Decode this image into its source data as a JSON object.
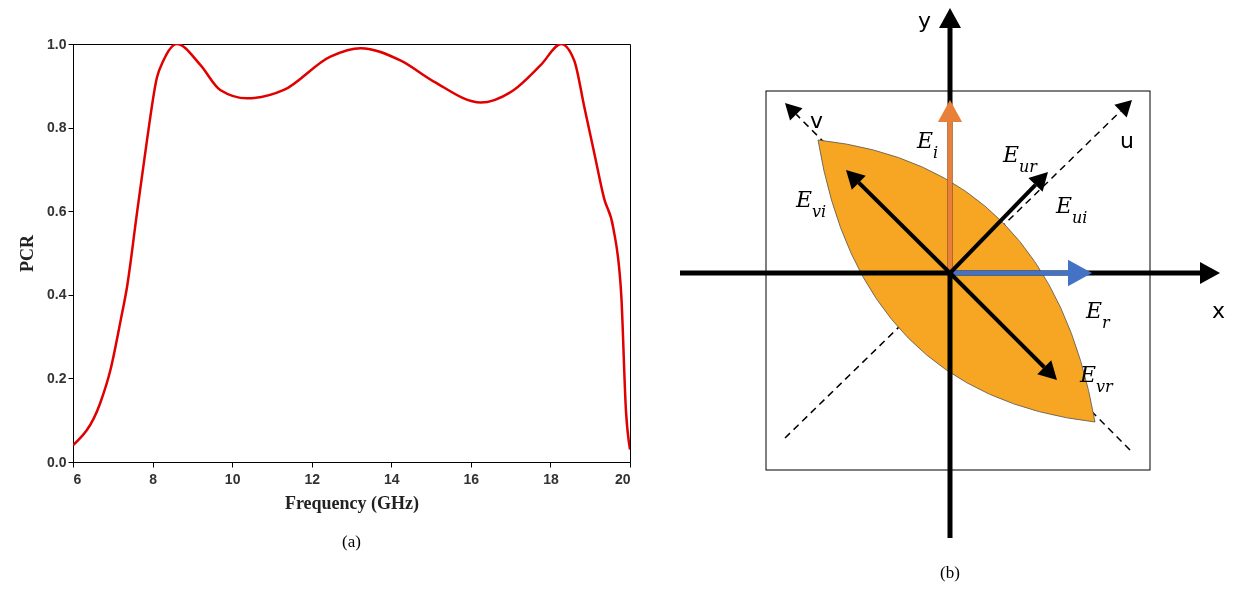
{
  "chart_data": [
    {
      "type": "line",
      "xlabel": "Frequency (GHz)",
      "ylabel": "PCR",
      "annotations": [
        "(a)"
      ],
      "x": [
        6,
        6.68,
        6.94,
        7.2,
        7.36,
        7.6,
        7.86,
        8.11,
        8.27,
        8.61,
        9.2,
        9.7,
        10.37,
        11.3,
        12.47,
        13.23,
        14.24,
        15.07,
        16.25,
        17.08,
        17.76,
        18.27,
        18.6,
        18.85,
        19.1,
        19.35,
        19.58,
        19.78,
        19.9,
        20
      ],
      "series": [
        {
          "color": "#e00000",
          "values": [
            0.04,
            0.14,
            0.22,
            0.34,
            0.42,
            0.59,
            0.77,
            0.92,
            0.96,
            1.0,
            0.95,
            0.89,
            0.87,
            0.89,
            0.97,
            0.99,
            0.96,
            0.91,
            0.86,
            0.89,
            0.95,
            1.0,
            0.96,
            0.85,
            0.74,
            0.63,
            0.56,
            0.4,
            0.12,
            0.03
          ]
        }
      ],
      "xlim": [
        6,
        20
      ],
      "xticks": [
        6,
        8,
        10,
        12,
        14,
        16,
        18,
        20
      ],
      "ylim": [
        0,
        1
      ],
      "yticks": [
        {
          "value": 0,
          "label": "0.0"
        },
        0.2,
        0.4,
        0.6,
        0.8,
        {
          "value": 1,
          "label": "1.0"
        }
      ],
      "grid": false,
      "legend": false,
      "marker": "none",
      "line_style": "solid"
    },
    {
      "type": "other",
      "annotations": [
        "y",
        "x",
        "v",
        "u",
        "E$_{i}$",
        "E$_{ur}$",
        "E$_{ui}$",
        "E$_{vi}$",
        "E$_{r}$",
        "E$_{vr}$",
        "(b)"
      ]
    }
  ]
}
